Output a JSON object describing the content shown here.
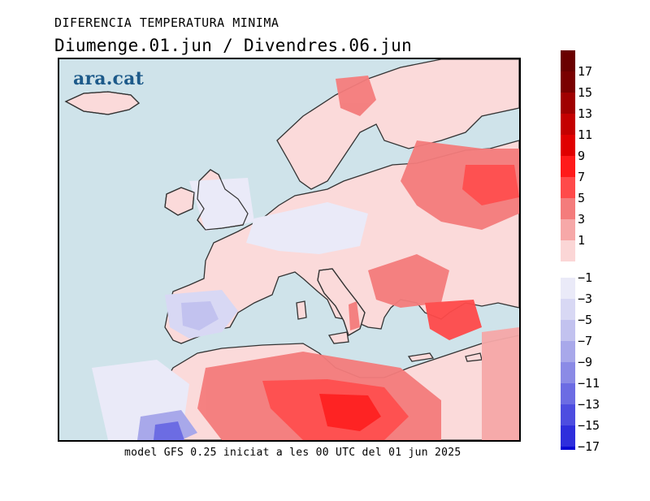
{
  "header": {
    "title": "DIFERENCIA TEMPERATURA MINIMA",
    "subtitle": "Diumenge.01.jun / Divendres.06.jun"
  },
  "footer": {
    "model_text": "model GFS 0.25 iniciat a les 00 UTC del 01 jun 2025"
  },
  "logo": {
    "text": "ara.cat"
  },
  "legend": {
    "positive": [
      {
        "label": "17",
        "color": "#7a0000"
      },
      {
        "label": "15",
        "color": "#a00000"
      },
      {
        "label": "13",
        "color": "#c40000"
      },
      {
        "label": "11",
        "color": "#e00000"
      },
      {
        "label": "9",
        "color": "#ff1a1a"
      },
      {
        "label": "7",
        "color": "#ff4a4a"
      },
      {
        "label": "5",
        "color": "#f47c7c"
      },
      {
        "label": "3",
        "color": "#f6a8a8"
      },
      {
        "label": "1",
        "color": "#fbd6d6"
      }
    ],
    "negative": [
      {
        "label": "−1",
        "color": "#eaeaf8"
      },
      {
        "label": "−3",
        "color": "#d8d8f4"
      },
      {
        "label": "−5",
        "color": "#c2c2ef"
      },
      {
        "label": "−7",
        "color": "#a8a8ea"
      },
      {
        "label": "−9",
        "color": "#8b8be6"
      },
      {
        "label": "−11",
        "color": "#6c6ce3"
      },
      {
        "label": "−13",
        "color": "#4d4de0"
      },
      {
        "label": "−15",
        "color": "#2e2edc"
      },
      {
        "label": "−17",
        "color": "#0a0ad4"
      }
    ],
    "neutral_color": "#ffffff"
  },
  "map": {
    "sea_color": "#cfe3ea",
    "land_base_color": "#fbe3e3",
    "coast_color": "#333333"
  }
}
